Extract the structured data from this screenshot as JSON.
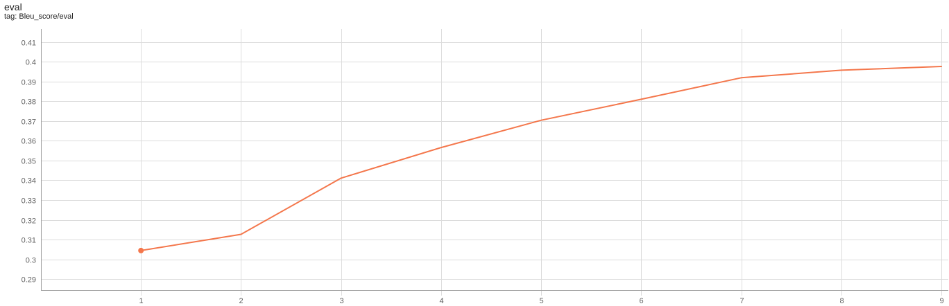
{
  "card": {
    "title": "eval",
    "tag_label": "tag: Bleu_score/eval"
  },
  "colors": {
    "series": "#f4774c",
    "grid": "#dcdcdc",
    "axis": "#9e9e9e"
  },
  "chart_data": {
    "type": "line",
    "title": "eval",
    "subtitle": "tag: Bleu_score/eval",
    "xlabel": "",
    "ylabel": "",
    "x": [
      1,
      2,
      3,
      4,
      5,
      6,
      7,
      8,
      9
    ],
    "series": [
      {
        "values": [
          0.3045,
          0.3127,
          0.3411,
          0.3566,
          0.3704,
          0.381,
          0.3919,
          0.3957,
          0.3976
        ]
      }
    ],
    "xticks": [
      "1",
      "2",
      "3",
      "4",
      "5",
      "6",
      "7",
      "8",
      "9"
    ],
    "yticks": [
      "0.29",
      "0.3",
      "0.31",
      "0.32",
      "0.33",
      "0.34",
      "0.35",
      "0.36",
      "0.37",
      "0.38",
      "0.39",
      "0.4",
      "0.41"
    ],
    "xlim": [
      0,
      9
    ],
    "ylim": [
      0.2845,
      0.4165
    ],
    "grid": true,
    "legend": false
  }
}
